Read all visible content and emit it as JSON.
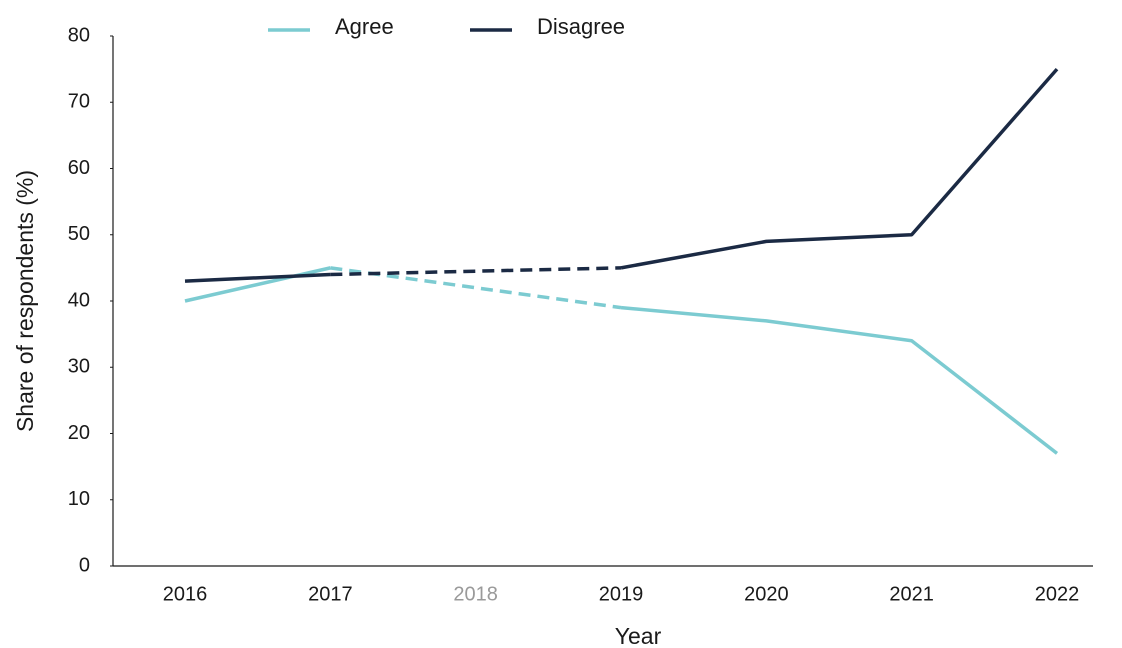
{
  "chart_data": {
    "type": "line",
    "x_label": "Year",
    "y_label": "Share of respondents (%)",
    "categories": [
      "2016",
      "2017",
      "2018",
      "2019",
      "2020",
      "2021",
      "2022"
    ],
    "series": [
      {
        "name": "Agree",
        "color": "#7ccbd1",
        "values": [
          40,
          45,
          null,
          39,
          37,
          34,
          17
        ]
      },
      {
        "name": "Disagree",
        "color": "#1b2a44",
        "values": [
          43,
          44,
          null,
          45,
          49,
          50,
          75
        ]
      }
    ],
    "ylim": [
      0,
      80
    ],
    "yticks": [
      0,
      10,
      20,
      30,
      40,
      50,
      60,
      70,
      80
    ],
    "gap_line": "dashed",
    "grid": false,
    "legend": "top"
  }
}
